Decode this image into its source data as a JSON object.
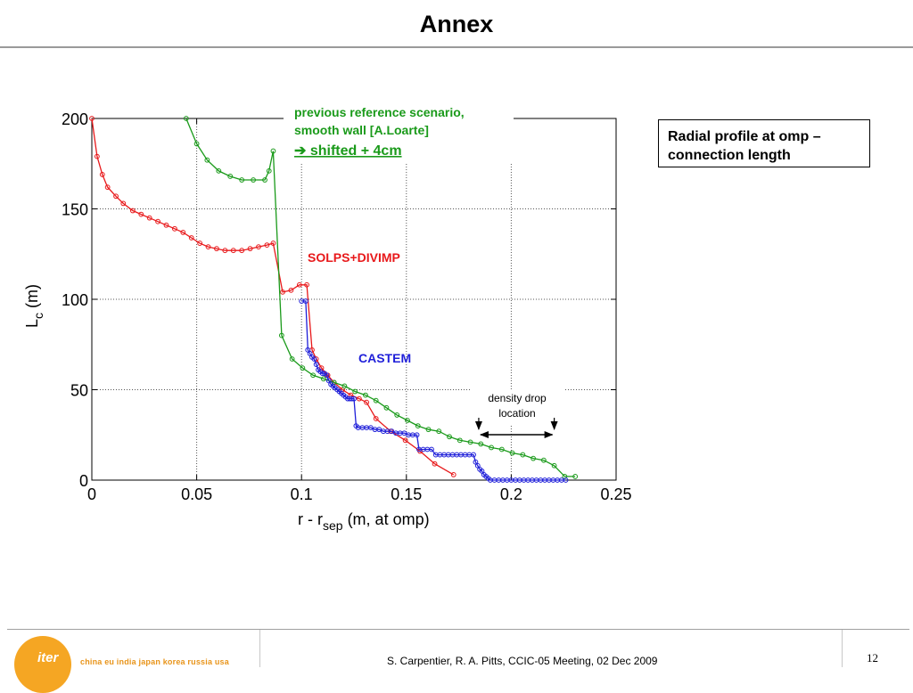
{
  "slide": {
    "title": "Annex",
    "note_box": "Radial profile at omp – connection length",
    "footer": {
      "logo_text": "iter",
      "logo_tagline": "china eu india japan korea russia usa",
      "citation": "S. Carpentier, R. A. Pitts, CCIC-05 Meeting, 02 Dec 2009",
      "page_number": "12"
    }
  },
  "chart_data": {
    "type": "line",
    "xlabel_main": "r - r",
    "xlabel_sub": "sep",
    "xlabel_tail": " (m, at omp)",
    "ylabel_main": "L",
    "ylabel_sub": "c",
    "ylabel_tail": " (m)",
    "xlim": [
      0,
      0.25
    ],
    "ylim": [
      0,
      200
    ],
    "x_ticks": [
      0,
      0.05,
      0.1,
      0.15,
      0.2,
      0.25
    ],
    "x_tick_labels": [
      "0",
      "0.05",
      "0.1",
      "0.15",
      "0.2",
      "0.25"
    ],
    "y_ticks": [
      0,
      50,
      100,
      150,
      200
    ],
    "y_tick_labels": [
      "0",
      "50",
      "100",
      "150",
      "200"
    ],
    "grid": true,
    "colors": {
      "red": "#e8191b",
      "green": "#1a9a1a",
      "blue": "#1f1fd9"
    },
    "annotations": {
      "solps": "SOLPS+DIVIMP",
      "castem": "CASTEM",
      "green_line1": "previous reference scenario,",
      "green_line2": "smooth wall [A.Loarte]",
      "green_line3": "➔ shifted + 4cm",
      "density_line1": "density drop",
      "density_line2": "location"
    },
    "series": [
      {
        "key": "solps",
        "color": "#e8191b",
        "x": [
          0,
          0.0025,
          0.005,
          0.0075,
          0.0115,
          0.015,
          0.0195,
          0.0235,
          0.0275,
          0.0315,
          0.0355,
          0.0395,
          0.0435,
          0.0475,
          0.0515,
          0.0555,
          0.0595,
          0.0635,
          0.0675,
          0.0715,
          0.0755,
          0.0795,
          0.0835,
          0.0865,
          0.091,
          0.095,
          0.099,
          0.1025,
          0.105,
          0.107,
          0.1095,
          0.1125,
          0.1155,
          0.1195,
          0.1235,
          0.1275,
          0.131,
          0.1355,
          0.1425,
          0.1495,
          0.1565,
          0.1635,
          0.1725
        ],
        "y": [
          200,
          179,
          169,
          162,
          157,
          153,
          149,
          147,
          145,
          143,
          141,
          139,
          137,
          134,
          131,
          129,
          128,
          127,
          127,
          127,
          128,
          129,
          130,
          131,
          104,
          105,
          108,
          108,
          72,
          67,
          62,
          58,
          54,
          50,
          47,
          45,
          43,
          34,
          27,
          22,
          16,
          9,
          3
        ]
      },
      {
        "key": "green",
        "color": "#1a9a1a",
        "x": [
          0.045,
          0.05,
          0.055,
          0.0605,
          0.066,
          0.0715,
          0.077,
          0.0825,
          0.0845,
          0.0865,
          0.0905,
          0.0955,
          0.1005,
          0.1055,
          0.1105,
          0.1155,
          0.1205,
          0.1255,
          0.1305,
          0.1355,
          0.1405,
          0.1455,
          0.1505,
          0.1555,
          0.1605,
          0.1655,
          0.1705,
          0.1755,
          0.1805,
          0.1855,
          0.1905,
          0.1955,
          0.2005,
          0.2055,
          0.2105,
          0.2155,
          0.2205,
          0.2255,
          0.2305
        ],
        "y": [
          200,
          186,
          177,
          171,
          168,
          166,
          166,
          166,
          171,
          182,
          80,
          67,
          62,
          58,
          56,
          54,
          52,
          49,
          47,
          44,
          40,
          36,
          33,
          30,
          28,
          27,
          24,
          22,
          21,
          20,
          18,
          17,
          15,
          14,
          12,
          11,
          8,
          2,
          2
        ]
      },
      {
        "key": "castem",
        "color": "#1f1fd9",
        "x": [
          0.1,
          0.102,
          0.103,
          0.104,
          0.105,
          0.106,
          0.107,
          0.108,
          0.109,
          0.11,
          0.111,
          0.112,
          0.113,
          0.114,
          0.115,
          0.116,
          0.117,
          0.118,
          0.119,
          0.12,
          0.121,
          0.122,
          0.123,
          0.124,
          0.125,
          0.126,
          0.127,
          0.129,
          0.131,
          0.133,
          0.135,
          0.137,
          0.139,
          0.141,
          0.143,
          0.145,
          0.147,
          0.149,
          0.151,
          0.153,
          0.155,
          0.156,
          0.158,
          0.16,
          0.162,
          0.164,
          0.166,
          0.168,
          0.17,
          0.172,
          0.174,
          0.176,
          0.178,
          0.18,
          0.182,
          0.183,
          0.184,
          0.185,
          0.186,
          0.187,
          0.188,
          0.189,
          0.19,
          0.192,
          0.194,
          0.196,
          0.198,
          0.2,
          0.202,
          0.204,
          0.206,
          0.208,
          0.21,
          0.212,
          0.214,
          0.216,
          0.218,
          0.22,
          0.222,
          0.224,
          0.226
        ],
        "y": [
          99,
          99,
          72,
          70,
          68,
          67,
          64,
          61,
          60,
          59,
          59,
          58,
          55,
          53,
          52,
          51,
          50,
          49,
          48,
          47,
          46,
          45,
          45,
          45,
          45,
          30,
          29,
          29,
          29,
          29,
          28,
          28,
          27,
          27,
          27,
          26,
          26,
          26,
          25,
          25,
          25,
          17,
          17,
          17,
          17,
          14,
          14,
          14,
          14,
          14,
          14,
          14,
          14,
          14,
          14,
          10,
          8,
          6,
          5,
          3,
          2,
          1,
          0,
          0,
          0,
          0,
          0,
          0,
          0,
          0,
          0,
          0,
          0,
          0,
          0,
          0,
          0,
          0,
          0,
          0,
          0
        ]
      }
    ],
    "density_drop_x": [
      0.1845,
      0.2205
    ]
  }
}
